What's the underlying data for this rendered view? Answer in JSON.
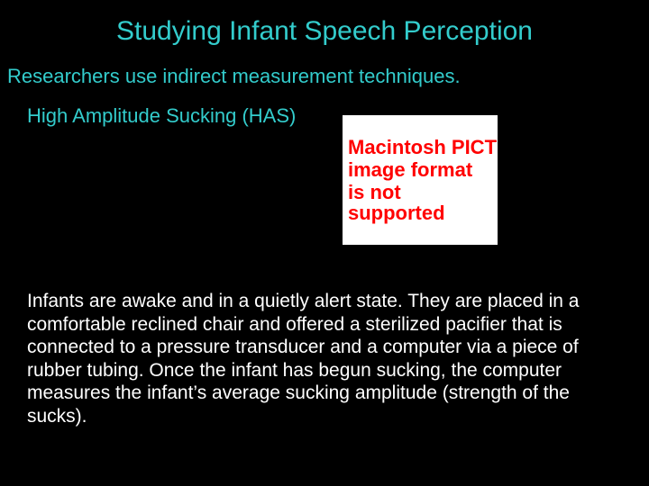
{
  "colors": {
    "background": "#000000",
    "accent_text": "#33cccc",
    "body_text": "#ffffff",
    "pict_bg": "#ffffff",
    "pict_text": "#ff0000"
  },
  "typography": {
    "title_fontsize": 30,
    "intro_fontsize": 22,
    "subhead_fontsize": 22,
    "body_fontsize": 21,
    "pict_fontsize": 22,
    "pict_fontweight": "bold",
    "font_family": "Arial"
  },
  "title": "Studying Infant Speech Perception",
  "intro": "Researchers use indirect measurement techniques.",
  "subhead": "High Amplitude Sucking (HAS)",
  "pict": {
    "line1": "Macintosh PICT",
    "line2": "image format",
    "line3": "is not supported"
  },
  "body": "Infants are awake and in a quietly alert state.  They are placed in a comfortable reclined chair and offered a sterilized pacifier that is connected to a pressure transducer and a computer via a piece of rubber tubing.  Once the infant has begun sucking, the computer measures the infant’s average sucking amplitude (strength of the sucks)."
}
